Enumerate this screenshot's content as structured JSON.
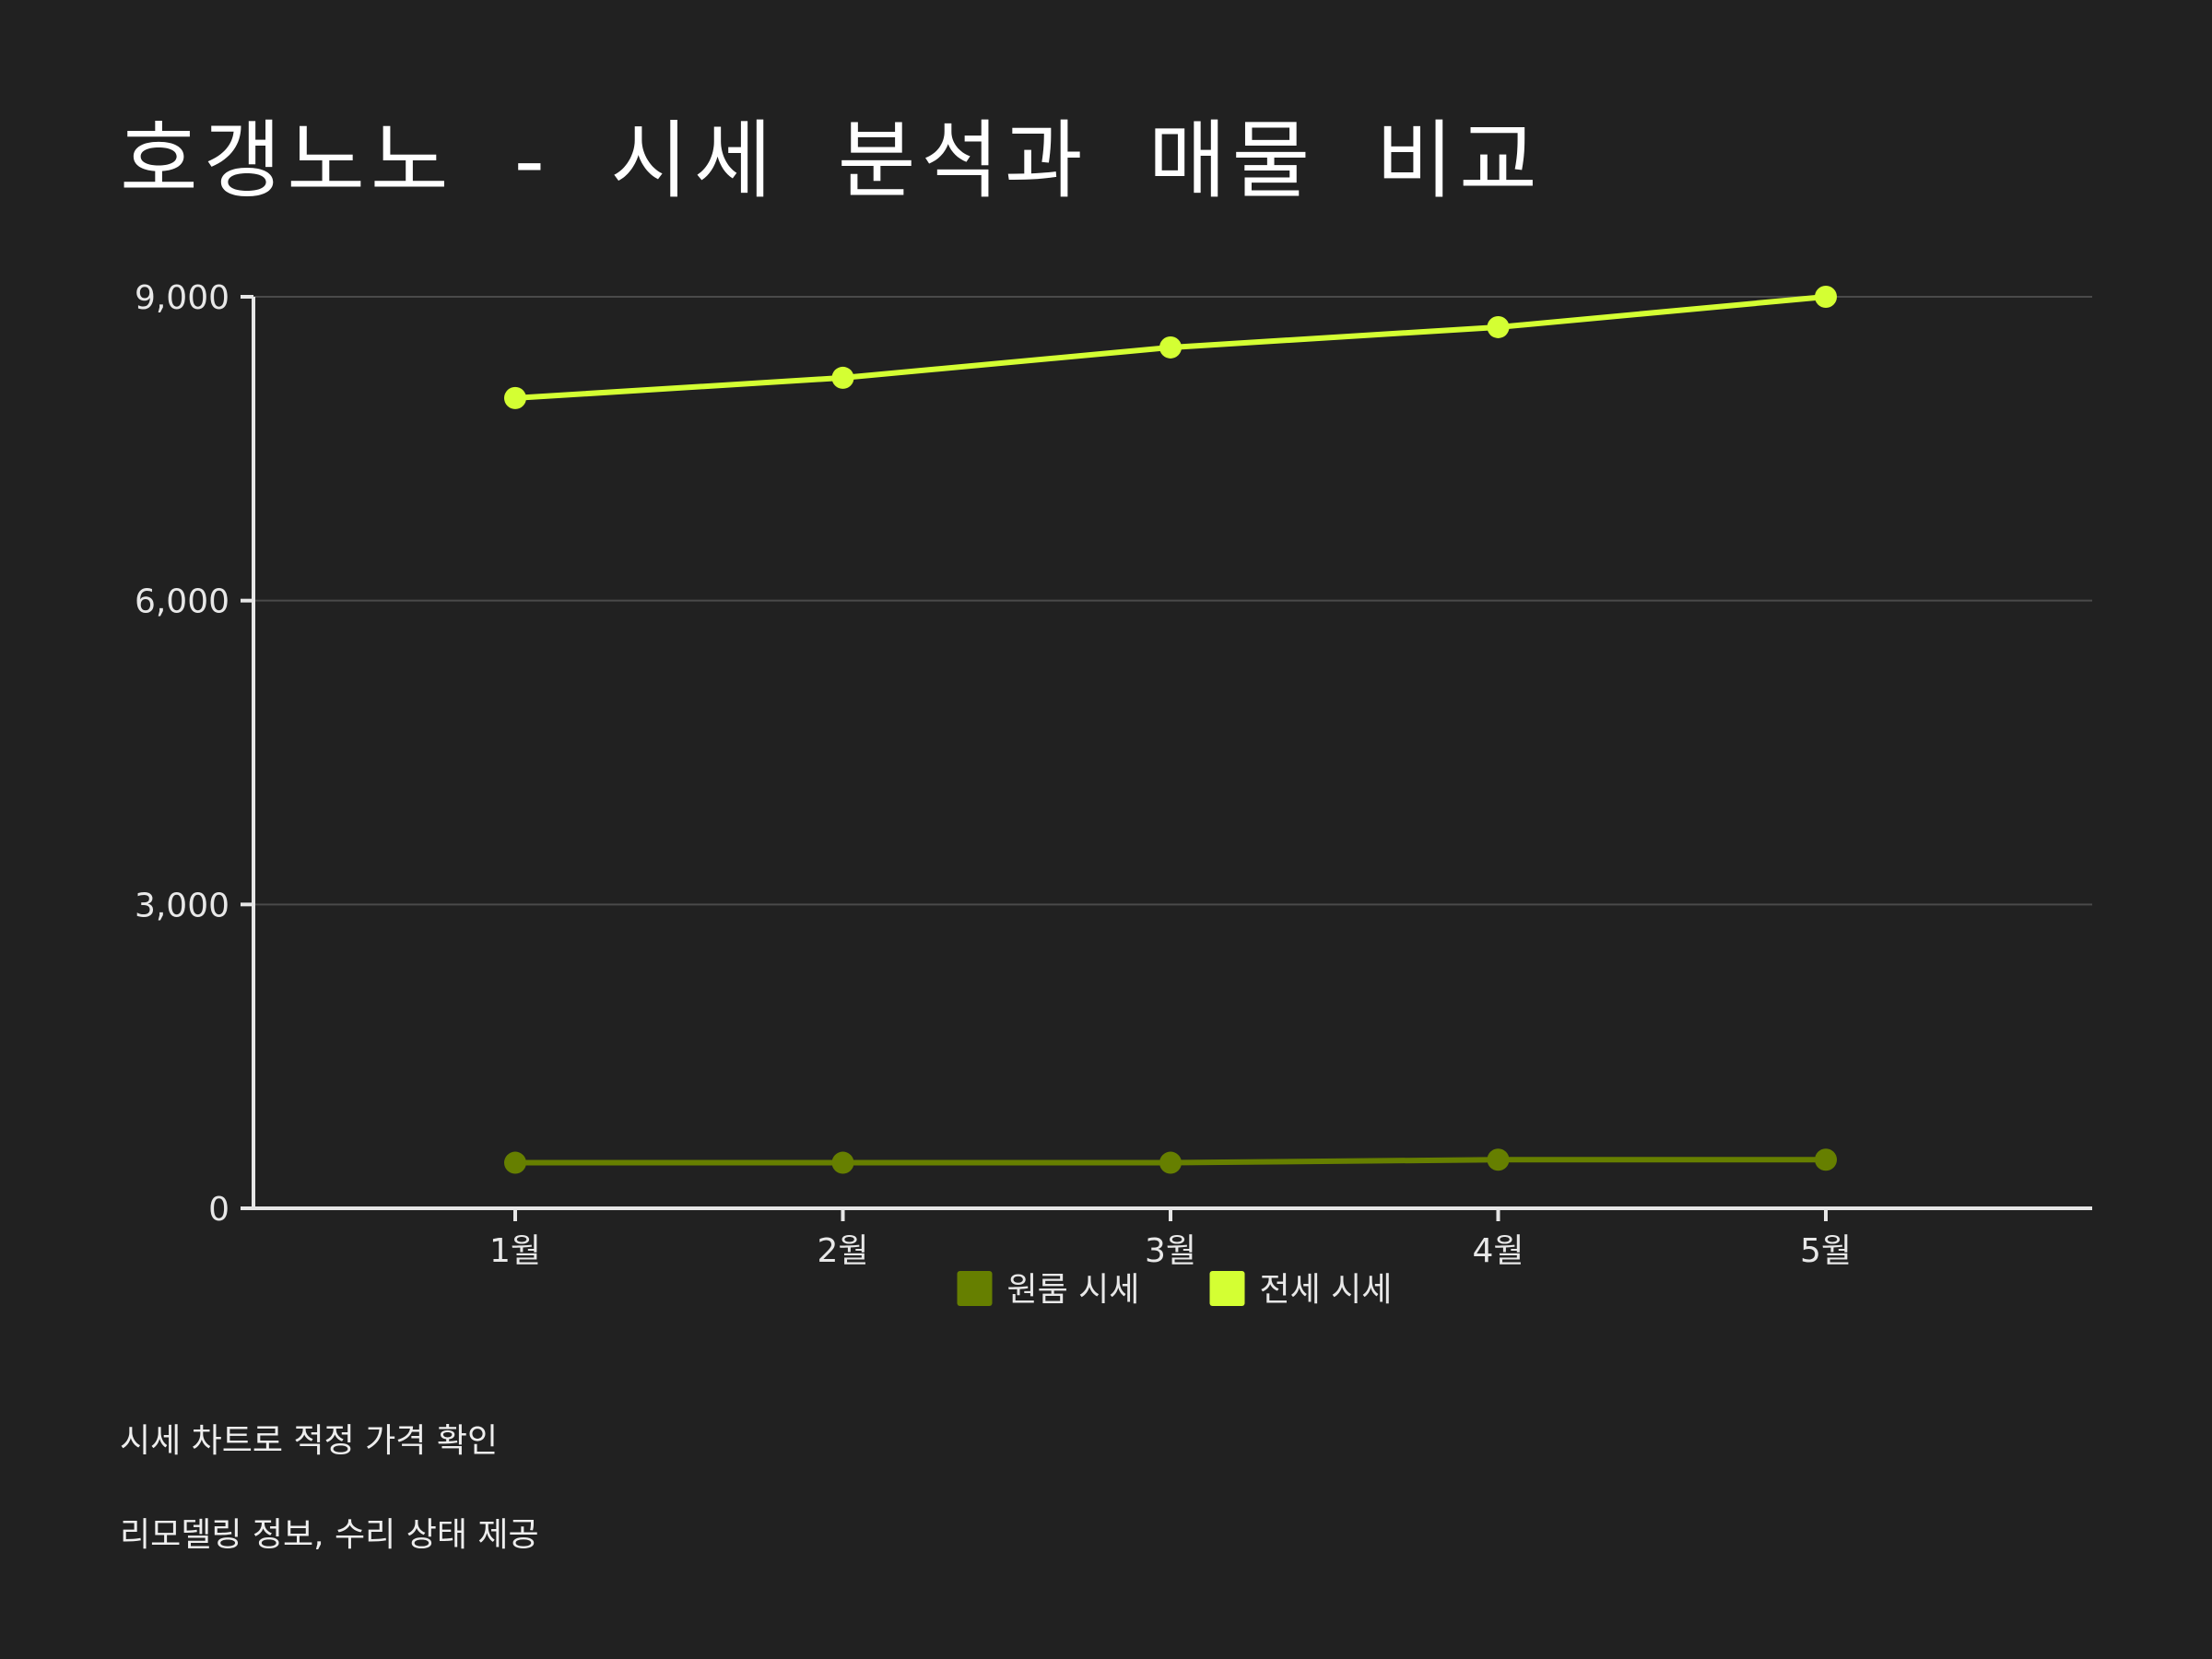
{
  "title": "호갱노노 - 시세 분석과 매물 비교",
  "notes": [
    "시세 차트로 적정 가격 확인",
    "리모델링 정보, 수리 상태 제공"
  ],
  "chart_data": {
    "type": "line",
    "title": "",
    "xlabel": "",
    "ylabel": "",
    "categories": [
      "1월",
      "2월",
      "3월",
      "4월",
      "5월"
    ],
    "ylim": [
      0,
      9000
    ],
    "yticks": [
      0,
      3000,
      6000,
      9000
    ],
    "ytick_labels": [
      "0",
      "3,000",
      "6,000",
      "9,000"
    ],
    "grid": true,
    "legend_position": "bottom-center",
    "series": [
      {
        "name": "원룸 시세",
        "color": "#667f00",
        "values": [
          450,
          450,
          450,
          480,
          480
        ]
      },
      {
        "name": "전세 시세",
        "color": "#d4ff33",
        "values": [
          8000,
          8200,
          8500,
          8700,
          9000
        ]
      }
    ]
  }
}
